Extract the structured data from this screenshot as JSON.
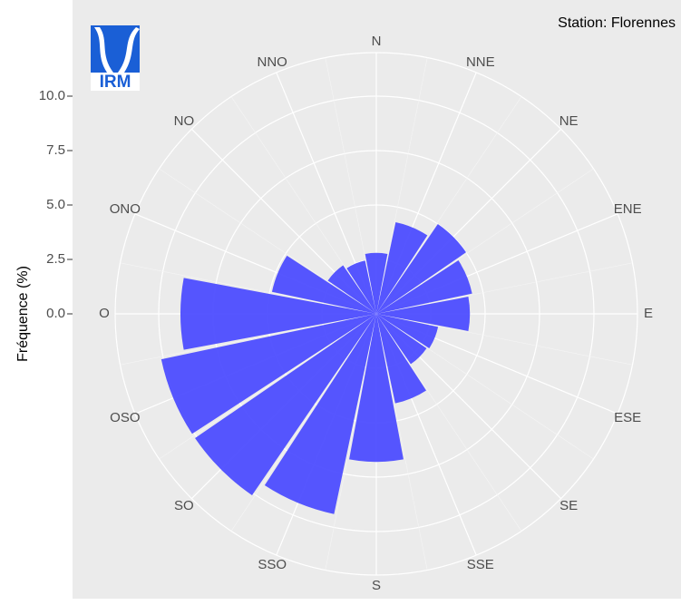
{
  "chart_data": {
    "type": "polar_bar",
    "subtitle": "Station: Florennes",
    "y_label": "Fréquence (%)",
    "logo_text": "IRM",
    "categories": [
      "N",
      "NNE",
      "NE",
      "ENE",
      "E",
      "ESE",
      "SE",
      "SSE",
      "S",
      "SSO",
      "SO",
      "OSO",
      "O",
      "ONO",
      "NO",
      "NNO"
    ],
    "values": [
      2.8,
      4.3,
      5.0,
      4.5,
      4.3,
      2.9,
      2.8,
      4.2,
      6.8,
      9.4,
      10.1,
      10.1,
      9.0,
      4.9,
      2.7,
      2.5
    ],
    "color": "#4d4dff",
    "ylim": [
      0,
      12
    ],
    "yticks": [
      {
        "value": 0,
        "label": "0.0"
      },
      2.5,
      {
        "value": 5,
        "label": "5.0"
      },
      7.5,
      {
        "value": 10,
        "label": "10.0"
      }
    ],
    "grid": true
  }
}
